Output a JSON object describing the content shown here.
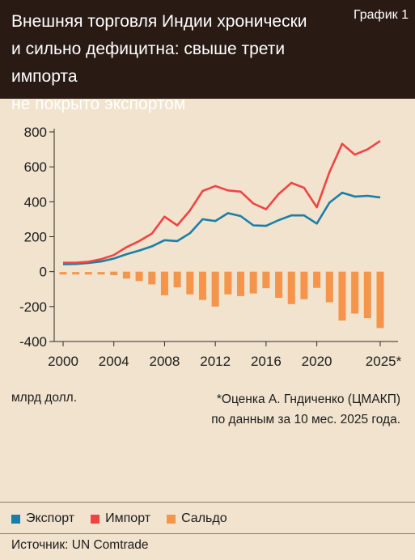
{
  "header": {
    "title_lines": [
      "Внешняя торговля Индии хронически",
      "и сильно дефицитна: свыше трети импорта",
      "не покрыто экспортом"
    ],
    "badge": "График 1"
  },
  "unit_label": "млрд долл.",
  "note_lines": [
    "*Оценка А. Гндиченко (ЦМАКП)",
    "по данным за 10 мес. 2025 года."
  ],
  "legend": [
    {
      "label": "Экспорт",
      "color": "#1a7fa8"
    },
    {
      "label": "Импорт",
      "color": "#ef4444"
    },
    {
      "label": "Сальдо",
      "color": "#f5954b"
    }
  ],
  "source": "Источник: UN Comtrade",
  "colors": {
    "export": "#1a7fa8",
    "import": "#ef4444",
    "balance": "#f5954b",
    "background": "#f1e3cd",
    "header": "#2a1a14"
  },
  "chart_data": {
    "type": "line",
    "x": [
      2000,
      2001,
      2002,
      2003,
      2004,
      2005,
      2006,
      2007,
      2008,
      2009,
      2010,
      2011,
      2012,
      2013,
      2014,
      2015,
      2016,
      2017,
      2018,
      2019,
      2020,
      2021,
      2022,
      2023,
      2024,
      2025
    ],
    "x_tick_values": [
      2000,
      2004,
      2008,
      2012,
      2016,
      2020,
      2025
    ],
    "x_tick_labels": [
      "2000",
      "2004",
      "2008",
      "2012",
      "2016",
      "2020",
      "2025*"
    ],
    "ylim": [
      -400,
      800
    ],
    "y_ticks": [
      800,
      600,
      400,
      200,
      0,
      -200,
      -400
    ],
    "series": [
      {
        "name": "Экспорт",
        "type": "line",
        "color": "#1a7fa8",
        "values": [
          43,
          44,
          50,
          58,
          75,
          100,
          121,
          145,
          180,
          175,
          220,
          300,
          290,
          335,
          318,
          265,
          262,
          295,
          322,
          322,
          275,
          395,
          452,
          430,
          434,
          425
        ]
      },
      {
        "name": "Импорт",
        "type": "line",
        "color": "#ef4444",
        "values": [
          51,
          51,
          57,
          71,
          95,
          140,
          175,
          218,
          315,
          265,
          350,
          462,
          490,
          465,
          458,
          390,
          357,
          445,
          508,
          480,
          368,
          570,
          732,
          670,
          700,
          748
        ]
      },
      {
        "name": "Сальдо",
        "type": "bar",
        "color": "#f5954b",
        "values": [
          -8,
          -7,
          -7,
          -13,
          -20,
          -40,
          -54,
          -73,
          -135,
          -90,
          -130,
          -162,
          -200,
          -130,
          -140,
          -125,
          -95,
          -150,
          -186,
          -158,
          -93,
          -175,
          -280,
          -240,
          -266,
          -323
        ]
      }
    ]
  }
}
